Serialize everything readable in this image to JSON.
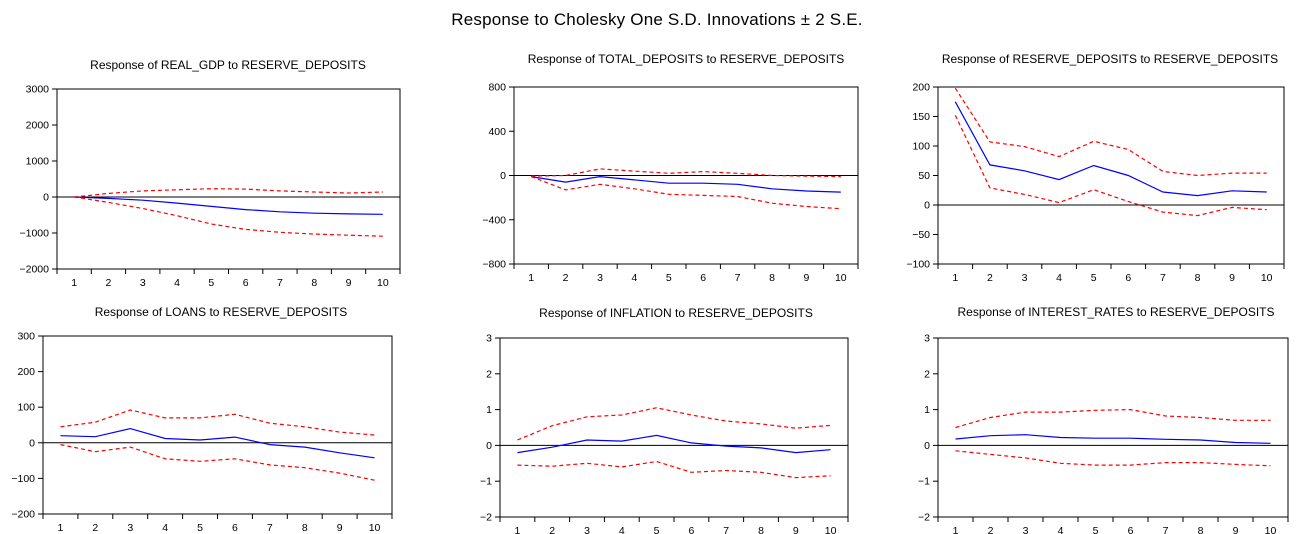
{
  "title": "Response to Cholesky One S.D. Innovations ± 2 S.E.",
  "colors": {
    "response": "#0000ff",
    "band": "#ff0000",
    "axis": "#000000",
    "zero_line": "#000000"
  },
  "chart_data": [
    {
      "type": "line",
      "title": "Response of REAL_GDP to RESERVE_DEPOSITS",
      "x": [
        1,
        2,
        3,
        4,
        5,
        6,
        7,
        8,
        9,
        10
      ],
      "ylim": [
        -2000,
        3000
      ],
      "yticks": [
        -2000,
        -1000,
        0,
        1000,
        2000,
        3000
      ],
      "yticklabels": [
        "−2000",
        "−1000",
        "0",
        "1000",
        "2000",
        "3000"
      ],
      "series": [
        {
          "role": "response",
          "values": [
            0,
            -40,
            -90,
            -170,
            -260,
            -350,
            -410,
            -450,
            -470,
            -480
          ]
        },
        {
          "role": "upper",
          "values": [
            0,
            100,
            170,
            200,
            230,
            220,
            170,
            140,
            110,
            140
          ]
        },
        {
          "role": "lower",
          "values": [
            0,
            -150,
            -320,
            -520,
            -750,
            -900,
            -980,
            -1030,
            -1060,
            -1090
          ]
        }
      ]
    },
    {
      "type": "line",
      "title": "Response of TOTAL_DEPOSITS to RESERVE_DEPOSITS",
      "x": [
        1,
        2,
        3,
        4,
        5,
        6,
        7,
        8,
        9,
        10
      ],
      "ylim": [
        -800,
        800
      ],
      "yticks": [
        -800,
        -400,
        0,
        400,
        800
      ],
      "yticklabels": [
        "−800",
        "−400",
        "0",
        "400",
        "800"
      ],
      "series": [
        {
          "role": "response",
          "values": [
            -10,
            -60,
            -10,
            -40,
            -70,
            -70,
            -80,
            -120,
            -140,
            -150
          ]
        },
        {
          "role": "upper",
          "values": [
            -5,
            0,
            60,
            40,
            20,
            35,
            20,
            0,
            -5,
            -10
          ]
        },
        {
          "role": "lower",
          "values": [
            -10,
            -130,
            -80,
            -120,
            -170,
            -180,
            -190,
            -250,
            -280,
            -300
          ]
        }
      ]
    },
    {
      "type": "line",
      "title": "Response of RESERVE_DEPOSITS to RESERVE_DEPOSITS",
      "x": [
        1,
        2,
        3,
        4,
        5,
        6,
        7,
        8,
        9,
        10
      ],
      "ylim": [
        -100,
        200
      ],
      "yticks": [
        -100,
        -50,
        0,
        50,
        100,
        150,
        200
      ],
      "yticklabels": [
        "−100",
        "−50",
        "0",
        "50",
        "100",
        "150",
        "200"
      ],
      "series": [
        {
          "role": "response",
          "values": [
            175,
            68,
            58,
            43,
            67,
            50,
            22,
            16,
            24,
            22
          ]
        },
        {
          "role": "upper",
          "values": [
            198,
            107,
            99,
            82,
            108,
            94,
            57,
            50,
            54,
            54
          ]
        },
        {
          "role": "lower",
          "values": [
            152,
            29,
            18,
            4,
            26,
            6,
            -12,
            -18,
            -4,
            -8
          ]
        }
      ]
    },
    {
      "type": "line",
      "title": "Response of LOANS to RESERVE_DEPOSITS",
      "x": [
        1,
        2,
        3,
        4,
        5,
        6,
        7,
        8,
        9,
        10
      ],
      "ylim": [
        -200,
        300
      ],
      "yticks": [
        -200,
        -100,
        0,
        100,
        200,
        300
      ],
      "yticklabels": [
        "−200",
        "−100",
        "0",
        "100",
        "200",
        "300"
      ],
      "series": [
        {
          "role": "response",
          "values": [
            20,
            17,
            40,
            12,
            8,
            16,
            -5,
            -12,
            -28,
            -42
          ]
        },
        {
          "role": "upper",
          "values": [
            45,
            58,
            92,
            70,
            70,
            80,
            55,
            45,
            30,
            22
          ]
        },
        {
          "role": "lower",
          "values": [
            -5,
            -25,
            -12,
            -45,
            -52,
            -45,
            -62,
            -70,
            -85,
            -105
          ]
        }
      ]
    },
    {
      "type": "line",
      "title": "Response of INFLATION to RESERVE_DEPOSITS",
      "x": [
        1,
        2,
        3,
        4,
        5,
        6,
        7,
        8,
        9,
        10
      ],
      "ylim": [
        -2,
        3
      ],
      "yticks": [
        -2,
        -1,
        0,
        1,
        2,
        3
      ],
      "yticklabels": [
        "−2",
        "−1",
        "0",
        "1",
        "2",
        "3"
      ],
      "series": [
        {
          "role": "response",
          "values": [
            -0.2,
            -0.05,
            0.15,
            0.12,
            0.28,
            0.07,
            -0.02,
            -0.07,
            -0.2,
            -0.12
          ]
        },
        {
          "role": "upper",
          "values": [
            0.15,
            0.55,
            0.8,
            0.85,
            1.05,
            0.85,
            0.68,
            0.6,
            0.48,
            0.56
          ]
        },
        {
          "role": "lower",
          "values": [
            -0.55,
            -0.58,
            -0.5,
            -0.6,
            -0.45,
            -0.75,
            -0.7,
            -0.75,
            -0.9,
            -0.85
          ]
        }
      ]
    },
    {
      "type": "line",
      "title": "Response of INTEREST_RATES to RESERVE_DEPOSITS",
      "x": [
        1,
        2,
        3,
        4,
        5,
        6,
        7,
        8,
        9,
        10
      ],
      "ylim": [
        -2,
        3
      ],
      "yticks": [
        -2,
        -1,
        0,
        1,
        2,
        3
      ],
      "yticklabels": [
        "−2",
        "−1",
        "0",
        "1",
        "2",
        "3"
      ],
      "series": [
        {
          "role": "response",
          "values": [
            0.18,
            0.27,
            0.3,
            0.22,
            0.2,
            0.2,
            0.17,
            0.15,
            0.08,
            0.06
          ]
        },
        {
          "role": "upper",
          "values": [
            0.5,
            0.78,
            0.93,
            0.93,
            0.98,
            1.0,
            0.82,
            0.78,
            0.7,
            0.7
          ]
        },
        {
          "role": "lower",
          "values": [
            -0.15,
            -0.25,
            -0.35,
            -0.5,
            -0.55,
            -0.55,
            -0.48,
            -0.48,
            -0.53,
            -0.57
          ]
        }
      ]
    }
  ]
}
